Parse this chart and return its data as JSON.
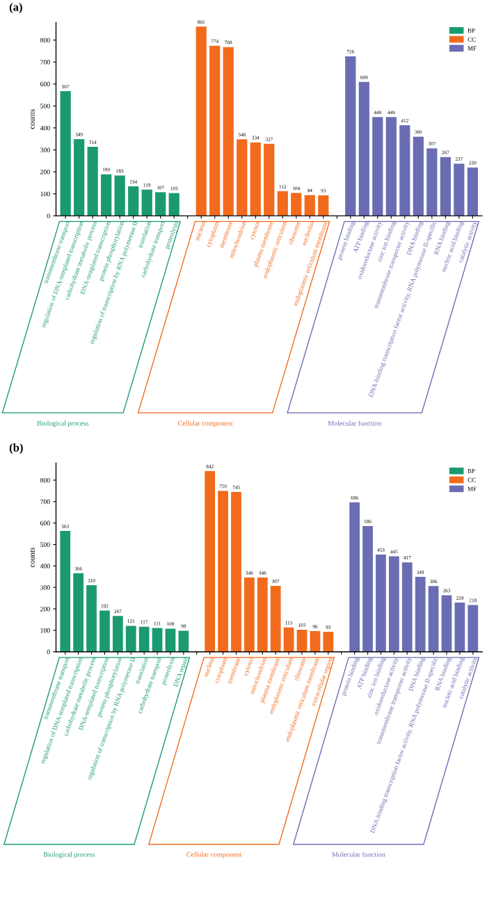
{
  "chart_data": [
    {
      "type": "bar",
      "title": "(a)",
      "ylabel": "counts",
      "categories": [
        "transmembrane transport",
        "regulation of DNA-templated transcription",
        "carbohydrate metabolic process",
        "DNA-templated transcription",
        "protein phosphorylation",
        "regulation of transcription by RNA polymerase II",
        "translation",
        "carbohydrate transport",
        "proteolysis",
        null,
        "nucleus",
        "cytoplasm",
        "membrane",
        "mitochondrion",
        "cytosol",
        "plasma membrane",
        "endoplasmic reticulum",
        "ribosome",
        "nucleolus",
        "endoplasmic reticulum membrane",
        null,
        "protein binding",
        "ATP binding",
        "oxidoreductase activity",
        "zinc ion binding",
        "transmembrane transporter activity",
        "DNA binding",
        "DNA-binding transcription factor activity, RNA polymerase II-specific",
        "RNA binding",
        "nucleic acid binding",
        "catalytic activity"
      ],
      "series": [
        {
          "name": "BP",
          "color": "#1b9a72",
          "values": [
            567,
            349,
            314,
            189,
            183,
            134,
            119,
            107,
            103,
            null,
            null,
            null,
            null,
            null,
            null,
            null,
            null,
            null,
            null,
            null,
            null,
            null,
            null,
            null,
            null,
            null,
            null,
            null,
            null,
            null,
            null
          ]
        },
        {
          "name": "CC",
          "color": "#f26a1c",
          "values": [
            null,
            null,
            null,
            null,
            null,
            null,
            null,
            null,
            null,
            null,
            861,
            774,
            768,
            348,
            334,
            327,
            112,
            104,
            94,
            93,
            null,
            null,
            null,
            null,
            null,
            null,
            null,
            null,
            null,
            null,
            null
          ]
        },
        {
          "name": "MF",
          "color": "#6a6db3",
          "values": [
            null,
            null,
            null,
            null,
            null,
            null,
            null,
            null,
            null,
            null,
            null,
            null,
            null,
            null,
            null,
            null,
            null,
            null,
            null,
            null,
            null,
            726,
            609,
            449,
            449,
            412,
            360,
            307,
            267,
            237,
            220
          ]
        }
      ],
      "ylim": [
        0,
        880
      ],
      "yticks": [
        0,
        100,
        200,
        300,
        400,
        500,
        600,
        700,
        800
      ],
      "data_labels": true,
      "legend": "top right",
      "grid": false,
      "annotations": [
        "Biological process",
        "Cellular component",
        "Molecular function"
      ]
    },
    {
      "type": "bar",
      "title": "(b)",
      "ylabel": "counts",
      "categories": [
        "transmembrane transport",
        "regulation of DNA-templated transcription",
        "carbohydrate metabolic process",
        "DNA-templated transcription",
        "protein phosphorylation",
        "regulation of transcription by RNA polymerase II",
        "translation",
        "carbohydrate transport",
        "proteolysis",
        "DNA repair",
        null,
        "nucleus",
        "cytoplasm",
        "membrane",
        "cytosol",
        "mitochondrion",
        "plasma membrane",
        "endoplasmic reticulum",
        "ribosome",
        "endoplasmic reticulum membrane",
        "extracellular region",
        null,
        "protein binding",
        "ATP binding",
        "zinc ion binding",
        "oxidoreductase activity",
        "transmembrane transporter activity",
        "DNA binding",
        "DNA-binding transcription factor activity, RNA polymerase II-specific",
        "RNA binding",
        "nucleic acid binding",
        "catalytic activity"
      ],
      "series": [
        {
          "name": "BP",
          "color": "#1b9a72",
          "values": [
            563,
            366,
            310,
            192,
            167,
            121,
            117,
            111,
            108,
            98,
            null,
            null,
            null,
            null,
            null,
            null,
            null,
            null,
            null,
            null,
            null,
            null,
            null,
            null,
            null,
            null,
            null,
            null,
            null,
            null,
            null,
            null
          ]
        },
        {
          "name": "CC",
          "color": "#f26a1c",
          "values": [
            null,
            null,
            null,
            null,
            null,
            null,
            null,
            null,
            null,
            null,
            null,
            842,
            750,
            745,
            346,
            346,
            307,
            113,
            103,
            96,
            93,
            null,
            null,
            null,
            null,
            null,
            null,
            null,
            null,
            null,
            null,
            null
          ]
        },
        {
          "name": "MF",
          "color": "#6a6db3",
          "values": [
            null,
            null,
            null,
            null,
            null,
            null,
            null,
            null,
            null,
            null,
            null,
            null,
            null,
            null,
            null,
            null,
            null,
            null,
            null,
            null,
            null,
            null,
            696,
            586,
            453,
            445,
            417,
            349,
            306,
            263,
            229,
            218
          ]
        }
      ],
      "ylim": [
        0,
        880
      ],
      "yticks": [
        0,
        100,
        200,
        300,
        400,
        500,
        600,
        700,
        800
      ],
      "data_labels": true,
      "legend": "top right",
      "grid": false,
      "annotations": [
        "Biological process",
        "Cellular component",
        "Molecular function"
      ]
    }
  ]
}
